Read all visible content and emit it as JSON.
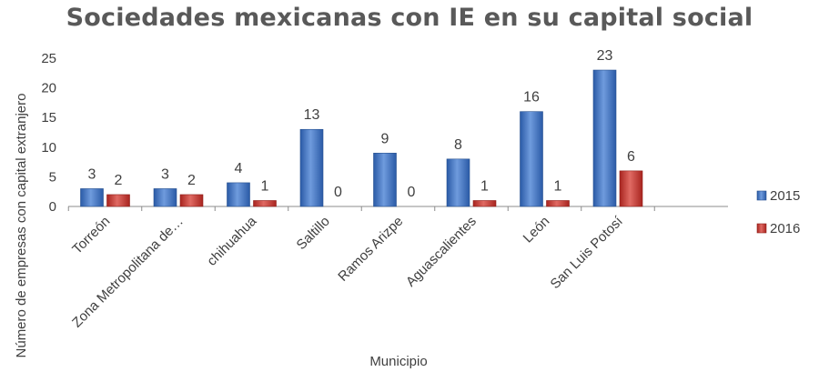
{
  "chart_data": {
    "type": "bar",
    "title": "Sociedades mexicanas con IE en su capital social",
    "xlabel": "Municipio",
    "ylabel": "Número de empresas con capital extranjero",
    "ylim": [
      0,
      25
    ],
    "yticks": [
      0,
      5,
      10,
      15,
      20,
      25
    ],
    "categories": [
      "Torreón",
      "Zona Metropolitana de…",
      "chihuahua",
      "Saltillo",
      "Ramos Arizpe",
      "Aguascalientes",
      "León",
      "San Luis Potosí"
    ],
    "series": [
      {
        "name": "2015",
        "values": [
          3,
          3,
          4,
          13,
          9,
          8,
          16,
          23
        ],
        "color": "#3A6DBF"
      },
      {
        "name": "2016",
        "values": [
          2,
          2,
          1,
          0,
          0,
          1,
          1,
          6
        ],
        "color": "#C0312B"
      }
    ],
    "grid": false,
    "legend": "right"
  }
}
